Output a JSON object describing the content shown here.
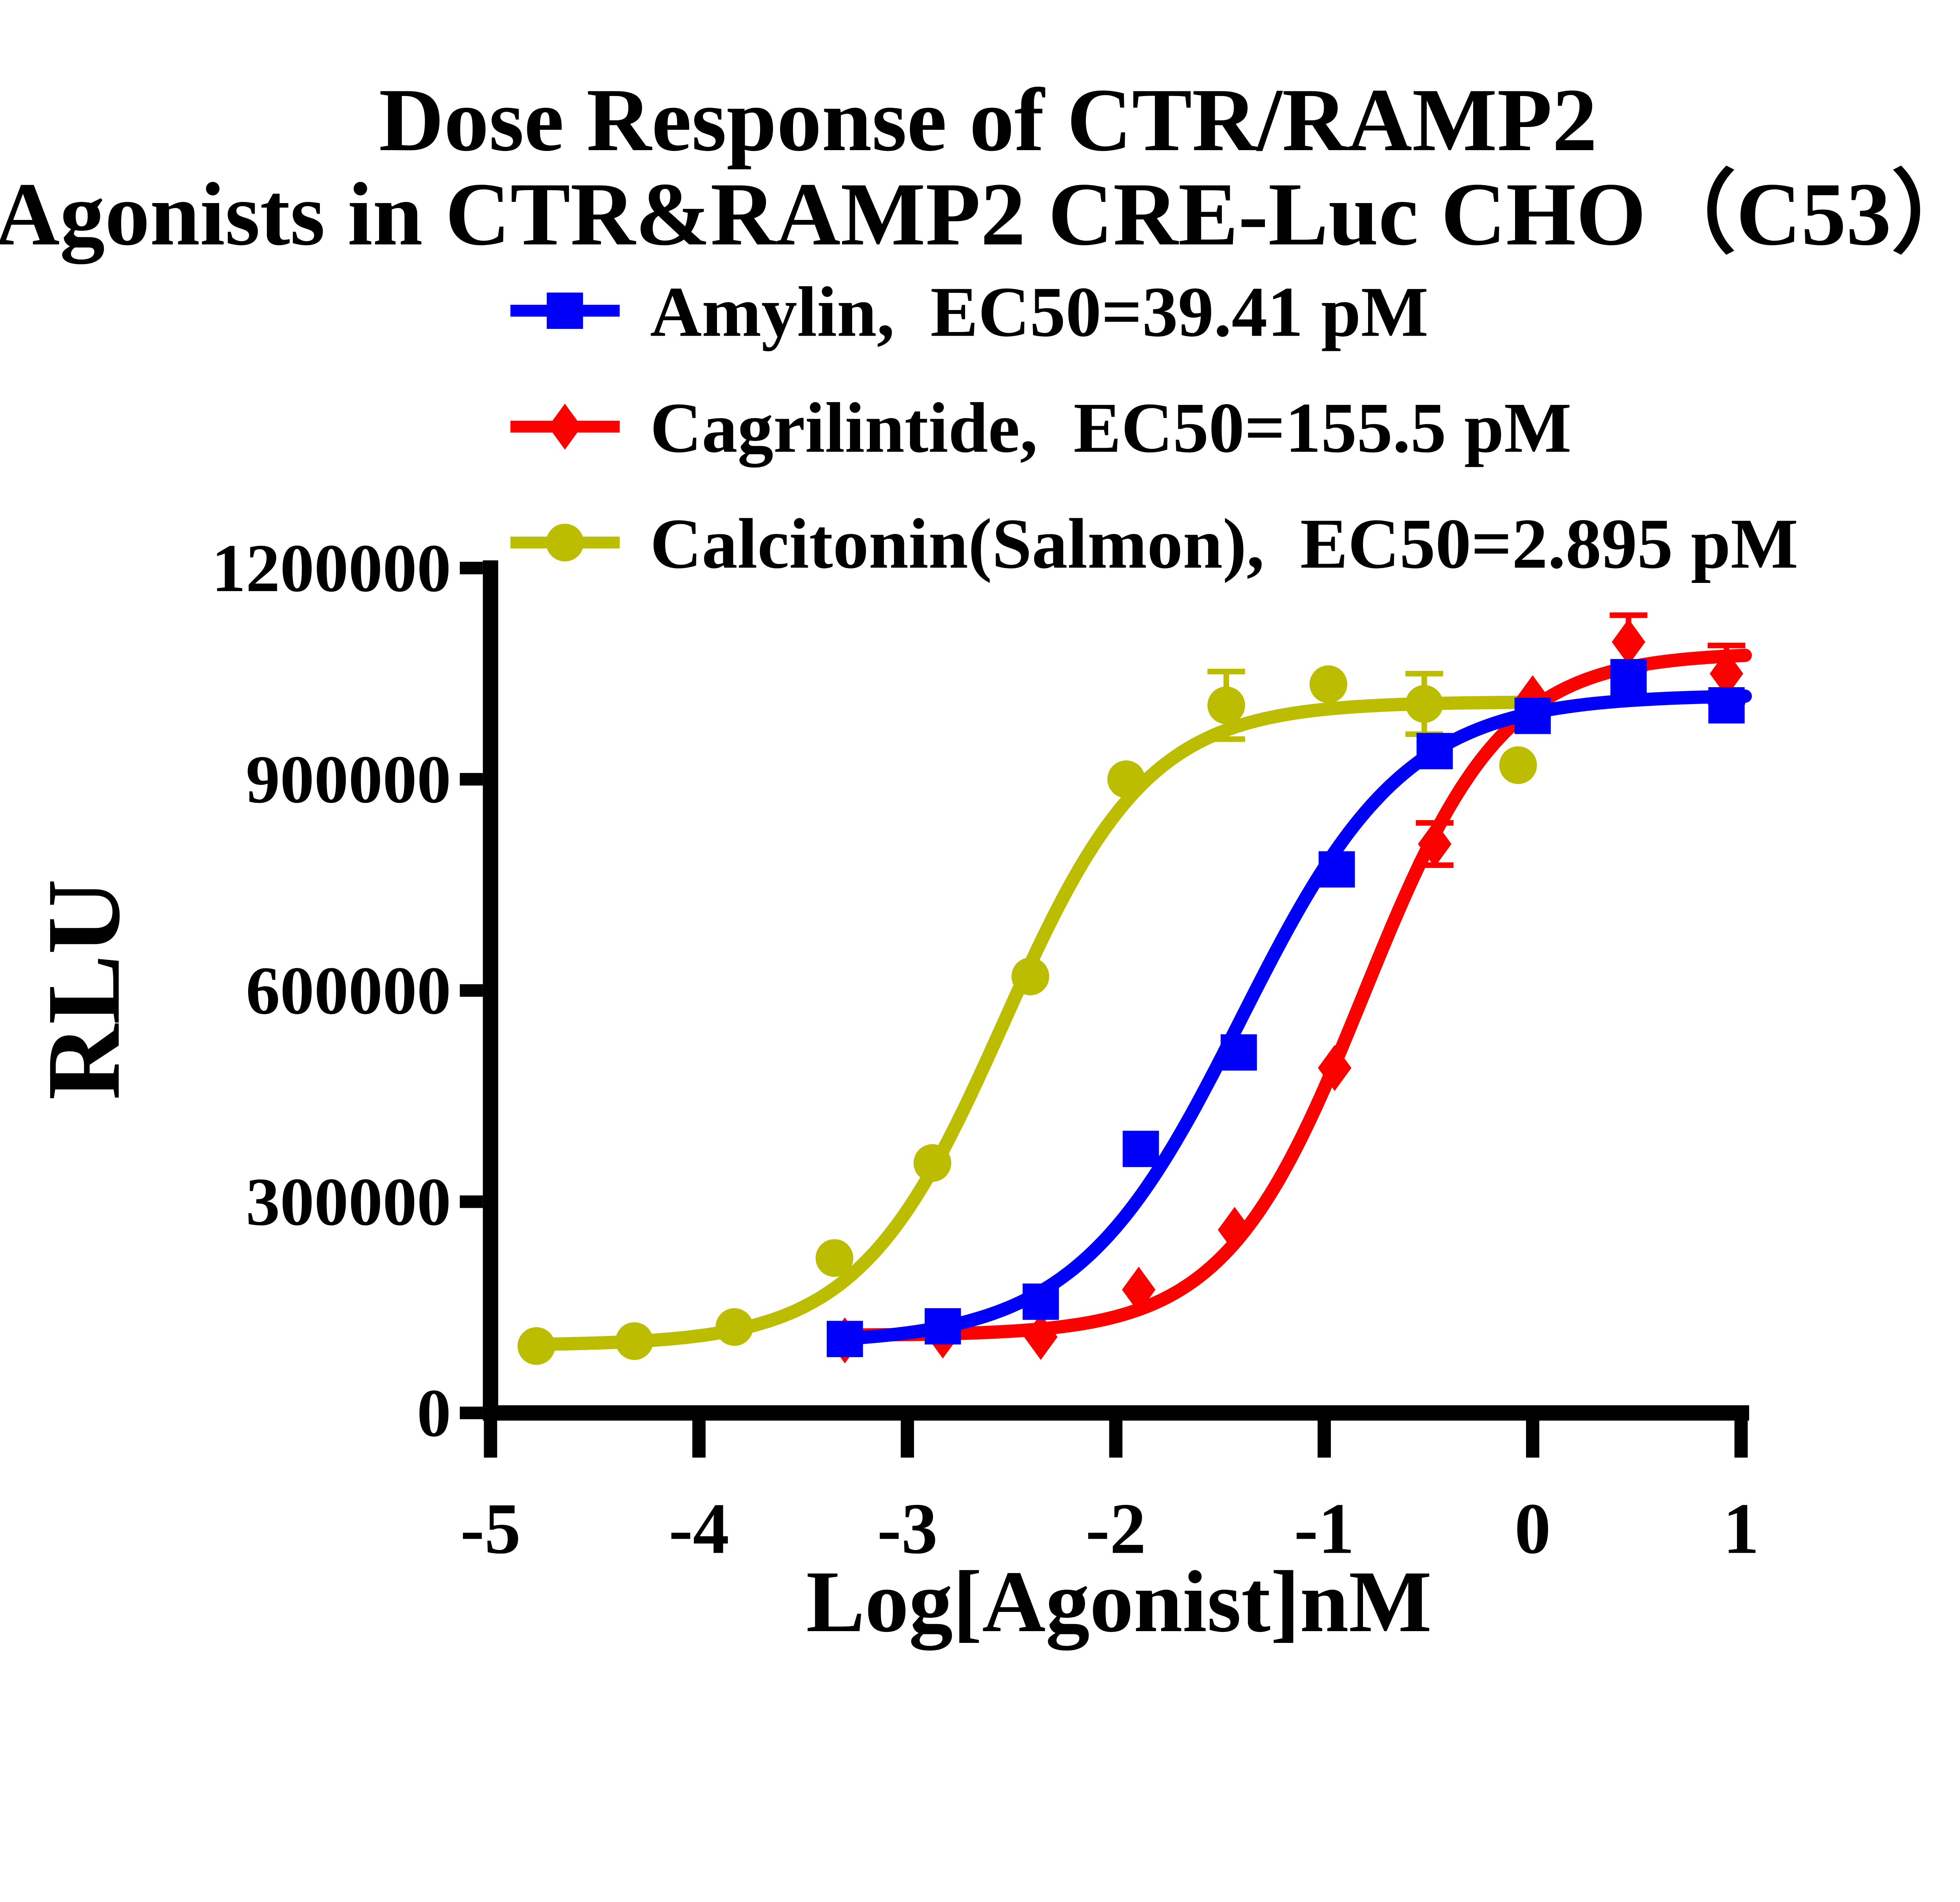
{
  "title": {
    "line1": "Dose Response of CTR/RAMP2",
    "line2": "Agonists in CTR&RAMP2 CRE-Luc CHO（C53）"
  },
  "legend": [
    {
      "label": "Amylin,  EC50=39.41 pM",
      "color": "#0000FA",
      "marker": "square"
    },
    {
      "label": "Cagrilintide,  EC50=155.5 pM",
      "color": "#FB0100",
      "marker": "diamond"
    },
    {
      "label": "Calcitonin(Salmon),  EC50=2.895 pM",
      "color": "#BCBC00",
      "marker": "circle"
    }
  ],
  "chart_data": {
    "type": "line",
    "title": "Dose Response of CTR/RAMP2 Agonists in CTR&RAMP2 CRE-Luc CHO（C53）",
    "xlabel": "Log[Agonist]nM",
    "ylabel": "RLU",
    "xlim": [
      -5,
      1
    ],
    "ylim": [
      0,
      1200000
    ],
    "x_ticks": [
      -5,
      -4,
      -3,
      -2,
      -1,
      0,
      1
    ],
    "y_ticks": [
      0,
      300000,
      600000,
      900000,
      1200000
    ],
    "grid": false,
    "legend_position": "top-left-under-title",
    "series": [
      {
        "name": "Amylin",
        "ec50_pM": 39.41,
        "color": "#0000FA",
        "marker": "square",
        "points": [
          [
            -3.3,
            105000
          ],
          [
            -2.83,
            123000
          ],
          [
            -2.36,
            158000
          ],
          [
            -1.88,
            375000
          ],
          [
            -1.41,
            512000
          ],
          [
            -0.94,
            772000
          ],
          [
            -0.47,
            940000
          ],
          [
            0.0,
            990000
          ],
          [
            0.46,
            1045000
          ],
          [
            0.93,
            1005000
          ]
        ],
        "error_bars": [],
        "fit": {
          "bottom": 98000,
          "top": 1020000,
          "logec50": -1.4,
          "hill": 1.1,
          "xmin": -3.3,
          "xmax": 1.03
        }
      },
      {
        "name": "Cagrilintide",
        "ec50_pM": 155.5,
        "color": "#FB0100",
        "marker": "diamond",
        "points": [
          [
            -3.3,
            103000
          ],
          [
            -2.83,
            110000
          ],
          [
            -2.36,
            108000
          ],
          [
            -1.89,
            175000
          ],
          [
            -1.43,
            260000
          ],
          [
            -0.95,
            490000
          ],
          [
            -0.47,
            808000
          ],
          [
            0.0,
            1015000
          ],
          [
            0.46,
            1095000
          ],
          [
            0.93,
            1050000
          ]
        ],
        "error_bars": [
          [
            -0.47,
            808000,
            30000
          ],
          [
            0.46,
            1095000,
            38000
          ],
          [
            0.93,
            1050000,
            40000
          ]
        ],
        "fit": {
          "bottom": 110000,
          "top": 1080000,
          "logec50": -0.81,
          "hill": 1.3,
          "xmin": -3.3,
          "xmax": 1.03
        }
      },
      {
        "name": "Calcitonin(Salmon)",
        "ec50_pM": 2.895,
        "color": "#BCBC00",
        "marker": "circle",
        "points": [
          [
            -4.78,
            95000
          ],
          [
            -4.31,
            102000
          ],
          [
            -3.83,
            122000
          ],
          [
            -3.35,
            220000
          ],
          [
            -2.88,
            355000
          ],
          [
            -2.41,
            620000
          ],
          [
            -1.95,
            900000
          ],
          [
            -1.47,
            1005000
          ],
          [
            -0.98,
            1035000
          ],
          [
            -0.52,
            1007000
          ],
          [
            -0.07,
            920000
          ]
        ],
        "error_bars": [
          [
            -1.47,
            1005000,
            48000
          ],
          [
            -0.52,
            1007000,
            43000
          ]
        ],
        "fit": {
          "bottom": 96000,
          "top": 1010000,
          "logec50": -2.54,
          "hill": 1.25,
          "xmin": -4.78,
          "xmax": -0.07
        }
      }
    ]
  }
}
